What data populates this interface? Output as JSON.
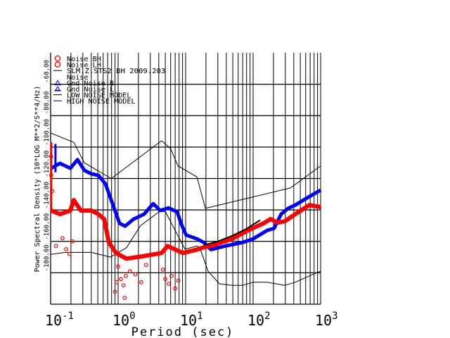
{
  "chart_data": {
    "type": "line",
    "xscale": "log",
    "xlim": [
      0.1,
      1000
    ],
    "ylim": [
      -200,
      -40
    ],
    "xlabel": "Period (sec)",
    "ylabel": "Power Spectral Density (10*LOG M**2/S**4/Hz)",
    "grid": true,
    "legend_placement": "top-left",
    "x_ticks": [
      {
        "base": "10",
        "exp": "-1",
        "value": 0.1
      },
      {
        "base": "10",
        "exp": "0",
        "value": 1
      },
      {
        "base": "10",
        "exp": "1",
        "value": 10
      },
      {
        "base": "10",
        "exp": "2",
        "value": 100
      },
      {
        "base": "10",
        "exp": "3",
        "value": 1000
      }
    ],
    "y_ticks": [
      {
        "label": "-60.00",
        "value": -60
      },
      {
        "label": "-80.00",
        "value": -80
      },
      {
        "label": "-100.00",
        "value": -100
      },
      {
        "label": "-120.00",
        "value": -120
      },
      {
        "label": "-140.00",
        "value": -140
      },
      {
        "label": "-160.00",
        "value": -160
      },
      {
        "label": "-180.00",
        "value": -180
      }
    ],
    "legend": [
      {
        "label": "Noise BH",
        "marker": "circle",
        "color": "#ff0000"
      },
      {
        "label": "Noise LH",
        "marker": "circle",
        "color": "#ff0000"
      },
      {
        "label": "SLM.Z.STS2 BH  2009.203",
        "marker": "line",
        "color": "#000000"
      },
      {
        "label": "Noise",
        "marker": "none",
        "color": "#000000"
      },
      {
        "label": "Gnd Noise B",
        "marker": "triangle",
        "color": "#0000ff"
      },
      {
        "label": "Gnd Noise L",
        "marker": "triangle",
        "color": "#0000ff"
      },
      {
        "label": "LOW NOISE MODEL",
        "marker": "line",
        "color": "#000000"
      },
      {
        "label": "HIGH NOISE MODEL",
        "marker": "line",
        "color": "#000000"
      }
    ],
    "series": [
      {
        "name": "HIGH NOISE MODEL",
        "color": "#000000",
        "width": 1,
        "x": [
          0.1,
          0.22,
          0.316,
          0.79,
          4.4,
          6.0,
          7.7,
          14.7,
          19.6,
          357,
          1000
        ],
        "y": [
          -91,
          -97,
          -110,
          -120,
          -96,
          -101,
          -112,
          -119,
          -139,
          -126,
          -112
        ]
      },
      {
        "name": "LOW NOISE MODEL",
        "color": "#000000",
        "width": 1,
        "x": [
          0.1,
          0.166,
          0.4,
          0.77,
          1.33,
          2.15,
          4.1,
          5.0,
          6.6,
          9.8,
          14.7,
          16.2,
          21.5,
          31.6,
          48.7,
          70,
          100,
          162,
          294,
          422,
          770,
          1000
        ],
        "y": [
          -168.3,
          -167,
          -167,
          -170,
          -164,
          -150,
          -141,
          -141,
          -151,
          -165,
          -163,
          -164,
          -179,
          -187,
          -188,
          -188,
          -186,
          -186,
          -188,
          -186,
          -181,
          -179
        ]
      },
      {
        "name": "Gnd Noise",
        "color": "#0000ff",
        "width": 5,
        "x": [
          0.102,
          0.137,
          0.196,
          0.25,
          0.316,
          0.4,
          0.51,
          0.65,
          0.825,
          1.05,
          1.27,
          1.7,
          2.43,
          3.3,
          4.2,
          5.6,
          7.5,
          8.7,
          10.2,
          14.7,
          18.6,
          23.7,
          38.3,
          70,
          100,
          162,
          205,
          260,
          330,
          422,
          680,
          1000
        ],
        "y": [
          -113.5,
          -110.3,
          -113.5,
          -108,
          -114.8,
          -117,
          -118,
          -123.4,
          -136,
          -148.5,
          -150.3,
          -145.8,
          -142.7,
          -136,
          -140.4,
          -138.7,
          -141.3,
          -149.4,
          -156,
          -158.4,
          -160.7,
          -165.2,
          -163,
          -160.7,
          -158.4,
          -153,
          -151.7,
          -142.7,
          -139,
          -136.9,
          -131.5,
          -127.4
        ]
      },
      {
        "name": "Noise",
        "color": "#ff0000",
        "width": 6,
        "x": [
          0.102,
          0.137,
          0.196,
          0.22,
          0.28,
          0.4,
          0.51,
          0.62,
          0.73,
          0.93,
          1.33,
          2.15,
          4.4,
          5.4,
          9.1,
          14.7,
          18.6,
          23.7,
          48.7,
          88,
          143,
          181,
          231,
          294,
          422,
          680,
          1000
        ],
        "y": [
          -140.4,
          -142.7,
          -140.4,
          -133.7,
          -140.4,
          -140.4,
          -142.7,
          -145.8,
          -160.7,
          -167.4,
          -171,
          -169.7,
          -167.4,
          -163,
          -167.4,
          -165.2,
          -163.8,
          -163,
          -158.4,
          -152.6,
          -148.5,
          -145.8,
          -148.1,
          -147.2,
          -142.7,
          -136.9,
          -138.2
        ]
      },
      {
        "name": "SLM.Z.STS2 BH",
        "color": "#000000",
        "width": 2,
        "x": [
          18.6,
          30,
          48.7,
          80,
          127
        ],
        "y": [
          -162.5,
          -160,
          -156.5,
          -152,
          -146.5
        ]
      }
    ],
    "outliers": {
      "color": "#ff0000",
      "x": [
        0.102,
        0.102,
        0.106,
        0.12,
        0.15,
        0.17,
        0.19,
        0.21,
        1.0,
        1.1,
        1.2,
        1.3,
        1.5,
        1.8,
        2.2,
        2.6,
        4.6,
        5.0,
        5.6,
        6.2,
        7.0,
        7.8,
        0.95,
        0.9,
        1.25
      ],
      "y": [
        -106,
        -118,
        -128,
        -163,
        -158,
        -165,
        -168,
        -160,
        -176,
        -184,
        -188,
        -182,
        -179,
        -181,
        -186,
        -175,
        -178,
        -184,
        -187,
        -182,
        -190,
        -185,
        -186,
        -192,
        -196
      ]
    },
    "spikes": {
      "red": {
        "x": 0.102,
        "y": [
          -141,
          -97
        ]
      },
      "blue": {
        "x": 0.118,
        "y": [
          -116,
          -98
        ]
      }
    }
  }
}
